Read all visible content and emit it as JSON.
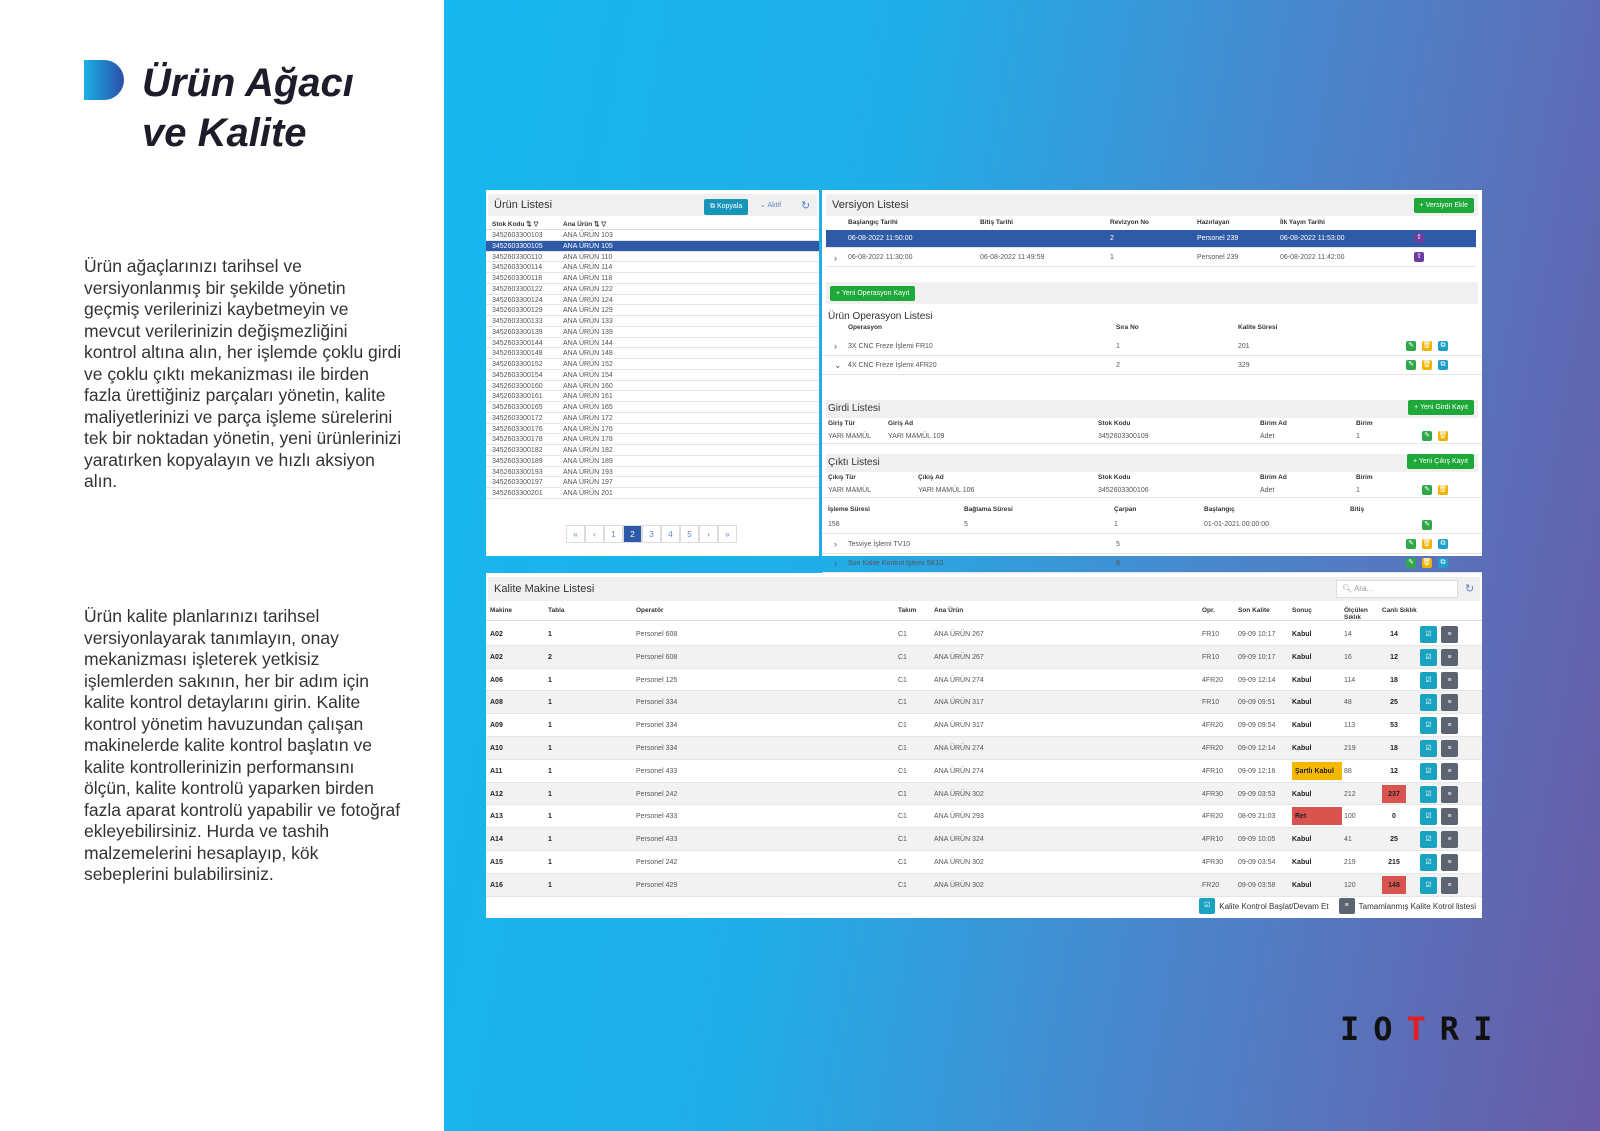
{
  "brochure": {
    "title_line1": "Ürün Ağacı",
    "title_line2": "ve Kalite",
    "para1": "Ürün ağaçlarınızı tarihsel ve versiyonlanmış bir şekilde yönetin geçmiş verilerinizi kaybetmeyin ve mevcut verilerinizin değişmezliğini kontrol altına alın, her işlemde çoklu girdi ve çoklu çıktı mekanizması ile birden fazla ürettiğiniz parçaları yönetin, kalite maliyetlerinizi ve parça işleme sürelerini tek bir noktadan yönetin, yeni ürünlerinizi yaratırken kopyalayın ve hızlı aksiyon alın.",
    "para2": "Ürün kalite planlarınızı tarihsel versiyonlayarak tanımlayın, onay mekanizması işleterek yetkisiz işlemlerden sakının, her bir adım için kalite kontrol detaylarını girin. Kalite kontrol yönetim havuzundan çalışan makinelerde kalite kontrol başlatın ve kalite kontrollerinizin performansını ölçün, kalite kontrolü yaparken birden fazla aparat kontrolü yapabilir ve fotoğraf ekleyebilirsiniz. Hurda ve tashih malzemelerini hesaplayıp, kök sebeplerini bulabilirsiniz.",
    "logo_text": "IOTRI"
  },
  "urun": {
    "title": "Ürün Listesi",
    "copy": "Kopyala",
    "aktif": "Aktif",
    "col_stok": "Stok Kodu",
    "col_ana": "Ana Ürün",
    "selected": 1,
    "rows": [
      [
        "3452603300103",
        "ANA ÜRÜN 103"
      ],
      [
        "3452603300105",
        "ANA ÜRÜN 105"
      ],
      [
        "3452603300110",
        "ANA ÜRÜN 110"
      ],
      [
        "3452603300114",
        "ANA ÜRÜN 114"
      ],
      [
        "3452603300118",
        "ANA ÜRÜN 118"
      ],
      [
        "3452603300122",
        "ANA ÜRÜN 122"
      ],
      [
        "3452603300124",
        "ANA ÜRÜN 124"
      ],
      [
        "3452603300129",
        "ANA ÜRÜN 129"
      ],
      [
        "3452603300133",
        "ANA ÜRÜN 133"
      ],
      [
        "3452603300139",
        "ANA ÜRÜN 139"
      ],
      [
        "3452603300144",
        "ANA ÜRÜN 144"
      ],
      [
        "3452603300148",
        "ANA ÜRÜN 148"
      ],
      [
        "3452603300152",
        "ANA ÜRÜN 152"
      ],
      [
        "3452603300154",
        "ANA ÜRÜN 154"
      ],
      [
        "3452603300160",
        "ANA ÜRÜN 160"
      ],
      [
        "3452603300161",
        "ANA ÜRÜN 161"
      ],
      [
        "3452603300165",
        "ANA ÜRÜN 165"
      ],
      [
        "3452603300172",
        "ANA ÜRÜN 172"
      ],
      [
        "3452603300176",
        "ANA ÜRÜN 176"
      ],
      [
        "3452603300178",
        "ANA ÜRÜN 178"
      ],
      [
        "3452603300182",
        "ANA ÜRÜN 182"
      ],
      [
        "3452603300189",
        "ANA ÜRÜN 189"
      ],
      [
        "3452603300193",
        "ANA ÜRÜN 193"
      ],
      [
        "3452603300197",
        "ANA ÜRÜN 197"
      ],
      [
        "3452603300201",
        "ANA ÜRÜN 201"
      ]
    ],
    "pages": [
      "«",
      "‹",
      "1",
      "2",
      "3",
      "4",
      "5",
      "›",
      "»"
    ],
    "current_page": "2"
  },
  "versiyon": {
    "title": "Versiyon Listesi",
    "add": "+ Versiyon Ekle",
    "cols": [
      "Başlangıç Tarihi",
      "Bitiş Tarihi",
      "Revizyon No",
      "Hazırlayan",
      "İlk Yayın Tarihi"
    ],
    "rows": [
      [
        "06-08-2022 11:50:00",
        "",
        "2",
        "Personel 239",
        "06-08-2022 11:53:00"
      ],
      [
        "06-08-2022 11:30:00",
        "06-08-2022 11:49:59",
        "1",
        "Personel 239",
        "06-08-2022 11:42:00"
      ]
    ]
  },
  "operasyon": {
    "new": "+ Yeni Operasyon Kayıt",
    "title": "Ürün Operasyon Listesi",
    "cols": [
      "Operasyon",
      "Sıra No",
      "Kalite Süresi"
    ],
    "rows": [
      [
        "3X CNC Freze İşlemi FR10",
        "1",
        "201"
      ],
      [
        "4X CNC Freze İşlemi 4FR20",
        "2",
        "329"
      ]
    ],
    "more": [
      [
        "Tesviye İşlemi TV10",
        "5"
      ],
      [
        "Son Kalite Kontrol İşlemi SK10",
        "6"
      ]
    ]
  },
  "girdi": {
    "title": "Girdi Listesi",
    "new": "+ Yeni Girdi Kayıt",
    "cols": [
      "Giriş Tür",
      "Giriş Ad",
      "Stok Kodu",
      "Birim Ad",
      "Birim"
    ],
    "row": [
      "YARI MAMÜL",
      "YARI MAMÜL 109",
      "3452603300109",
      "Adet",
      "1"
    ]
  },
  "cikti": {
    "title": "Çıktı Listesi",
    "new": "+ Yeni Çıkış Kayıt",
    "cols": [
      "Çıkış Tür",
      "Çıkış Ad",
      "Stok Kodu",
      "Birim Ad",
      "Birim"
    ],
    "row": [
      "YARI MAMÜL",
      "YARI MAMÜL 106",
      "3452603300106",
      "Adet",
      "1"
    ]
  },
  "isleme": {
    "cols": [
      "İşleme Süresi",
      "Bağlama Süresi",
      "Çarpan",
      "Başlangıç",
      "Bitiş"
    ],
    "row": [
      "158",
      "5",
      "1",
      "01-01-2021 00:00:00",
      ""
    ]
  },
  "kalite": {
    "title": "Kalite Makine Listesi",
    "search_placeholder": "Ara...",
    "cols": [
      "Makine",
      "Tabla",
      "Operatör",
      "Takım",
      "Ana Ürün",
      "Opr.",
      "Son Kalite",
      "Sonuç",
      "Ölçülen Sıklık",
      "Canlı Sıklık"
    ],
    "rows": [
      [
        "A02",
        "1",
        "Personel 608",
        "C1",
        "ANA ÜRÜN 267",
        "FR10",
        "09-09 10:17",
        "Kabul",
        "14",
        "14"
      ],
      [
        "A02",
        "2",
        "Personel 608",
        "C1",
        "ANA ÜRÜN 267",
        "FR10",
        "09-09 10:17",
        "Kabul",
        "16",
        "12"
      ],
      [
        "A06",
        "1",
        "Personel 125",
        "C1",
        "ANA ÜRÜN 274",
        "4FR20",
        "09-09 12:14",
        "Kabul",
        "114",
        "18"
      ],
      [
        "A08",
        "1",
        "Personel 334",
        "C1",
        "ANA ÜRÜN 317",
        "FR10",
        "09-09 09:51",
        "Kabul",
        "48",
        "25"
      ],
      [
        "A09",
        "1",
        "Personel 334",
        "C1",
        "ANA ÜRÜN 317",
        "4FR20",
        "09-09 09:54",
        "Kabul",
        "113",
        "53"
      ],
      [
        "A10",
        "1",
        "Personel 334",
        "C1",
        "ANA ÜRÜN 274",
        "4FR20",
        "09-09 12:14",
        "Kabul",
        "219",
        "18"
      ],
      [
        "A11",
        "1",
        "Personel 433",
        "C1",
        "ANA ÜRÜN 274",
        "4FR10",
        "09-09 12:16",
        "Şartlı Kabul",
        "88",
        "12"
      ],
      [
        "A12",
        "1",
        "Personel 242",
        "C1",
        "ANA ÜRÜN 302",
        "4FR30",
        "09-09 03:53",
        "Kabul",
        "212",
        "237"
      ],
      [
        "A13",
        "1",
        "Personel 433",
        "C1",
        "ANA ÜRÜN 293",
        "4FR20",
        "08-09 21:03",
        "Ret",
        "100",
        "0"
      ],
      [
        "A14",
        "1",
        "Personel 433",
        "C1",
        "ANA ÜRÜN 324",
        "4FR10",
        "09-09 10:05",
        "Kabul",
        "41",
        "25"
      ],
      [
        "A15",
        "1",
        "Personel 242",
        "C1",
        "ANA ÜRÜN 302",
        "4FR30",
        "09-09 03:54",
        "Kabul",
        "219",
        "215"
      ],
      [
        "A16",
        "1",
        "Personel 429",
        "C1",
        "ANA ÜRÜN 302",
        "FR20",
        "09-09 03:58",
        "Kabul",
        "120",
        "148"
      ]
    ],
    "alert_live": [
      "237",
      "148"
    ],
    "legend_start": "Kalite Kontrol Başlat/Devam Et",
    "legend_done": "Tamamlanmış Kalite Kotrol listesi"
  },
  "colors": {
    "selected": "#2f5aa8",
    "green": "#1fa83a",
    "warning": "#f5b800",
    "danger": "#d9534f",
    "teal": "#1aa3c0"
  }
}
